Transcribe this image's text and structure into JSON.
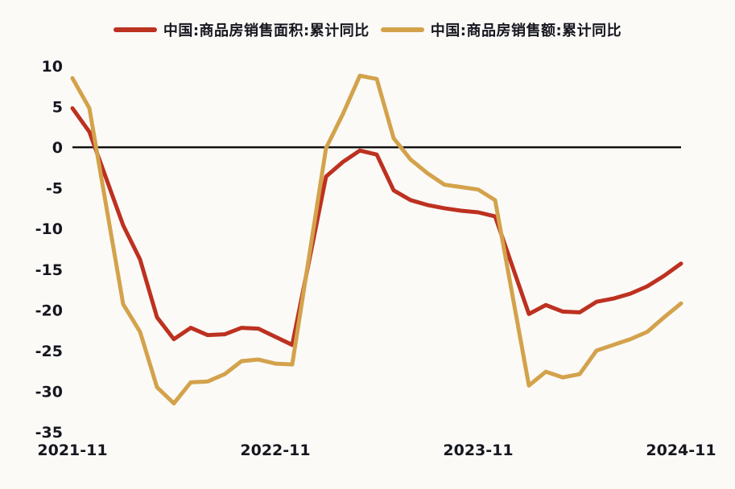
{
  "chart_data": {
    "type": "line",
    "title": "",
    "xlabel": "",
    "ylabel": "",
    "unit": "%",
    "ylim": [
      -35,
      10
    ],
    "y_ticks": [
      10,
      5,
      0,
      -5,
      -10,
      -15,
      -20,
      -25,
      -30,
      -35
    ],
    "x_tick_labels": [
      "2021-11",
      "2022-11",
      "2023-11",
      "2024-11"
    ],
    "x_tick_month_index": [
      0,
      12,
      24,
      36
    ],
    "zero_line": true,
    "grid": false,
    "legend_position": "top-center",
    "months": [
      "2021-11",
      "2021-12",
      "2022-01",
      "2022-02",
      "2022-03",
      "2022-04",
      "2022-05",
      "2022-06",
      "2022-07",
      "2022-08",
      "2022-09",
      "2022-10",
      "2022-11",
      "2022-12",
      "2023-01",
      "2023-02",
      "2023-03",
      "2023-04",
      "2023-05",
      "2023-06",
      "2023-07",
      "2023-08",
      "2023-09",
      "2023-10",
      "2023-11",
      "2023-12",
      "2024-01",
      "2024-02",
      "2024-03",
      "2024-04",
      "2024-05",
      "2024-06",
      "2024-07",
      "2024-08",
      "2024-09",
      "2024-10",
      "2024-11"
    ],
    "series": [
      {
        "name": "中国:商品房销售面积:累计同比",
        "color": "#bd3120",
        "values": [
          4.8,
          1.9,
          null,
          -9.6,
          -13.8,
          -20.9,
          -23.6,
          -22.2,
          -23.1,
          -23.0,
          -22.2,
          -22.3,
          -23.3,
          -24.3,
          null,
          -3.6,
          -1.8,
          -0.4,
          -0.9,
          -5.3,
          -6.5,
          -7.1,
          -7.5,
          -7.8,
          -8.0,
          -8.5,
          null,
          -20.5,
          -19.4,
          -20.2,
          -20.3,
          -19.0,
          -18.6,
          -18.0,
          -17.1,
          -15.8,
          -14.3
        ]
      },
      {
        "name": "中国:商品房销售额:累计同比",
        "color": "#d3a24b",
        "values": [
          8.5,
          4.8,
          null,
          -19.3,
          -22.7,
          -29.5,
          -31.5,
          -28.9,
          -28.8,
          -27.9,
          -26.3,
          -26.1,
          -26.6,
          -26.7,
          null,
          -0.1,
          4.1,
          8.8,
          8.4,
          1.1,
          -1.5,
          -3.2,
          -4.6,
          -4.9,
          -5.2,
          -6.5,
          null,
          -29.3,
          -27.6,
          -28.3,
          -27.9,
          -25.0,
          -24.3,
          -23.6,
          -22.7,
          -20.9,
          -19.2
        ]
      }
    ],
    "axis_color": "#111111",
    "background_color": "#fbfaf7"
  }
}
